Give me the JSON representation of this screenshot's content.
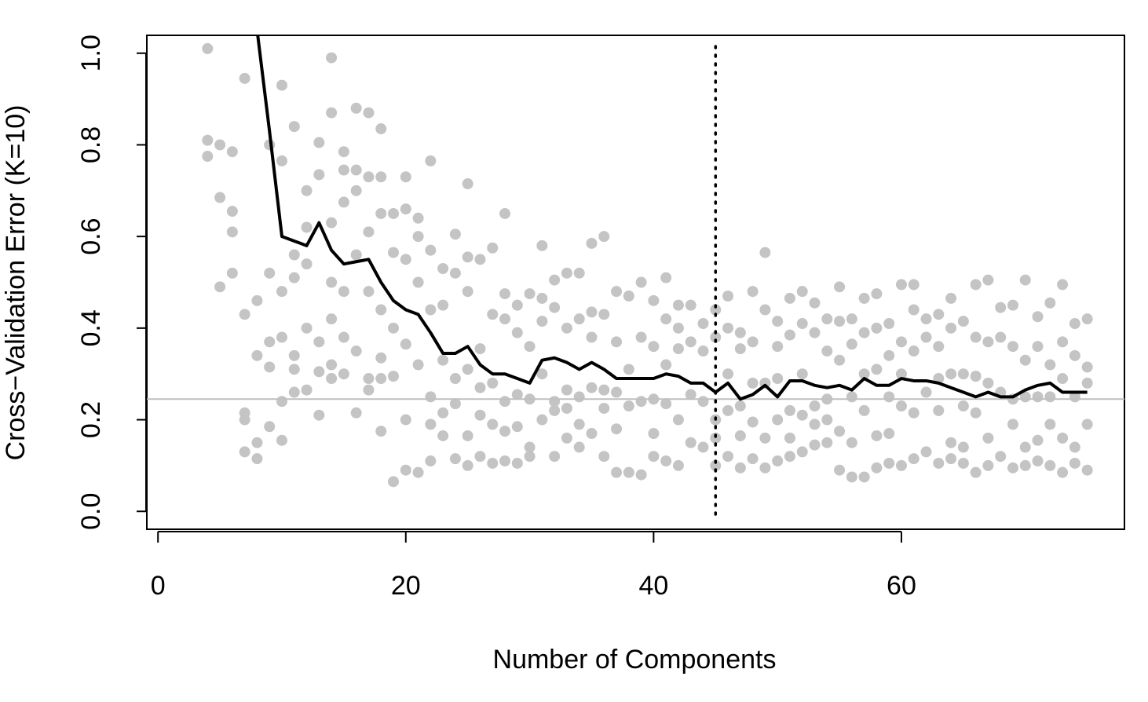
{
  "chart_data": {
    "type": "scatter",
    "xlabel": "Number of Components",
    "ylabel": "Cross−Validation Error (K=10)",
    "xlim": [
      -0.9,
      78.0
    ],
    "ylim": [
      -0.039,
      1.039
    ],
    "xticks": [
      0,
      20,
      40,
      60
    ],
    "yticks": [
      {
        "value": 0,
        "label": "0.0"
      },
      0.2,
      0.4,
      0.6,
      0.8,
      {
        "value": 1,
        "label": "1.0"
      }
    ],
    "hline": 0.245,
    "hline_color": "#c0c0c0",
    "vline": 45,
    "vline_color": "#000000",
    "series": [
      {
        "type": "scatter",
        "color": "#c4c4c4",
        "groups": [
          {
            "x": 4,
            "values": [
              1.01,
              0.81,
              0.775
            ]
          },
          {
            "x": 5,
            "values": [
              0.8,
              0.685,
              0.49
            ]
          },
          {
            "x": 6,
            "values": [
              0.785,
              0.655,
              0.61,
              0.52
            ]
          },
          {
            "x": 7,
            "values": [
              0.945,
              0.43,
              0.215,
              0.2,
              0.13
            ]
          },
          {
            "x": 8,
            "values": [
              0.46,
              0.34,
              0.15,
              0.115
            ]
          },
          {
            "x": 9,
            "values": [
              0.8,
              0.52,
              0.37,
              0.315,
              0.185
            ]
          },
          {
            "x": 10,
            "values": [
              0.93,
              0.765,
              0.48,
              0.38,
              0.24,
              0.155
            ]
          },
          {
            "x": 11,
            "values": [
              0.84,
              0.56,
              0.51,
              0.34,
              0.31,
              0.26
            ]
          },
          {
            "x": 12,
            "values": [
              0.7,
              0.62,
              0.54,
              0.4,
              0.265
            ]
          },
          {
            "x": 13,
            "values": [
              0.805,
              0.735,
              0.37,
              0.305,
              0.21
            ]
          },
          {
            "x": 14,
            "values": [
              0.99,
              0.87,
              0.63,
              0.5,
              0.42,
              0.32,
              0.29
            ]
          },
          {
            "x": 15,
            "values": [
              0.785,
              0.745,
              0.675,
              0.48,
              0.38,
              0.3
            ]
          },
          {
            "x": 16,
            "values": [
              0.88,
              0.745,
              0.7,
              0.56,
              0.35,
              0.215
            ]
          },
          {
            "x": 17,
            "values": [
              0.87,
              0.73,
              0.61,
              0.48,
              0.29,
              0.265
            ]
          },
          {
            "x": 18,
            "values": [
              0.835,
              0.73,
              0.65,
              0.44,
              0.335,
              0.29,
              0.175
            ]
          },
          {
            "x": 19,
            "values": [
              0.65,
              0.565,
              0.4,
              0.295,
              0.065
            ]
          },
          {
            "x": 20,
            "values": [
              0.73,
              0.66,
              0.55,
              0.365,
              0.2,
              0.09
            ]
          },
          {
            "x": 21,
            "values": [
              0.64,
              0.6,
              0.5,
              0.32,
              0.085
            ]
          },
          {
            "x": 22,
            "values": [
              0.765,
              0.57,
              0.44,
              0.25,
              0.19,
              0.11
            ]
          },
          {
            "x": 23,
            "values": [
              0.53,
              0.45,
              0.33,
              0.215,
              0.165
            ]
          },
          {
            "x": 24,
            "values": [
              0.605,
              0.52,
              0.29,
              0.235,
              0.115
            ]
          },
          {
            "x": 25,
            "values": [
              0.715,
              0.555,
              0.48,
              0.31,
              0.165,
              0.1
            ]
          },
          {
            "x": 26,
            "values": [
              0.55,
              0.355,
              0.27,
              0.21,
              0.12
            ]
          },
          {
            "x": 27,
            "values": [
              0.575,
              0.43,
              0.28,
              0.19,
              0.105
            ]
          },
          {
            "x": 28,
            "values": [
              0.65,
              0.475,
              0.42,
              0.24,
              0.175,
              0.11
            ]
          },
          {
            "x": 29,
            "values": [
              0.45,
              0.39,
              0.255,
              0.185,
              0.105
            ]
          },
          {
            "x": 30,
            "values": [
              0.475,
              0.36,
              0.245,
              0.14,
              0.12
            ]
          },
          {
            "x": 31,
            "values": [
              0.58,
              0.465,
              0.415,
              0.3,
              0.2
            ]
          },
          {
            "x": 32,
            "values": [
              0.505,
              0.445,
              0.24,
              0.22,
              0.12
            ]
          },
          {
            "x": 33,
            "values": [
              0.52,
              0.4,
              0.265,
              0.225,
              0.16
            ]
          },
          {
            "x": 34,
            "values": [
              0.52,
              0.42,
              0.25,
              0.19,
              0.14
            ]
          },
          {
            "x": 35,
            "values": [
              0.585,
              0.435,
              0.38,
              0.27,
              0.17
            ]
          },
          {
            "x": 36,
            "values": [
              0.6,
              0.43,
              0.265,
              0.225,
              0.12
            ]
          },
          {
            "x": 37,
            "values": [
              0.48,
              0.37,
              0.26,
              0.18,
              0.085
            ]
          },
          {
            "x": 38,
            "values": [
              0.47,
              0.31,
              0.23,
              0.085
            ]
          },
          {
            "x": 39,
            "values": [
              0.5,
              0.38,
              0.24,
              0.08
            ]
          },
          {
            "x": 40,
            "values": [
              0.46,
              0.36,
              0.245,
              0.17,
              0.12
            ]
          },
          {
            "x": 41,
            "values": [
              0.51,
              0.42,
              0.32,
              0.235,
              0.11
            ]
          },
          {
            "x": 42,
            "values": [
              0.45,
              0.4,
              0.355,
              0.2,
              0.1
            ]
          },
          {
            "x": 43,
            "values": [
              0.45,
              0.37,
              0.255,
              0.15
            ]
          },
          {
            "x": 44,
            "values": [
              0.41,
              0.35,
              0.24,
              0.14
            ]
          },
          {
            "x": 45,
            "values": [
              0.44,
              0.38,
              0.2,
              0.16,
              0.1
            ]
          },
          {
            "x": 46,
            "values": [
              0.47,
              0.4,
              0.3,
              0.22,
              0.12
            ]
          },
          {
            "x": 47,
            "values": [
              0.39,
              0.355,
              0.23,
              0.165,
              0.095
            ]
          },
          {
            "x": 48,
            "values": [
              0.48,
              0.37,
              0.28,
              0.195,
              0.115
            ]
          },
          {
            "x": 49,
            "values": [
              0.565,
              0.44,
              0.28,
              0.16,
              0.095
            ]
          },
          {
            "x": 50,
            "values": [
              0.415,
              0.36,
              0.29,
              0.2,
              0.11
            ]
          },
          {
            "x": 51,
            "values": [
              0.465,
              0.385,
              0.22,
              0.16,
              0.12
            ]
          },
          {
            "x": 52,
            "values": [
              0.48,
              0.41,
              0.3,
              0.21,
              0.13
            ]
          },
          {
            "x": 53,
            "values": [
              0.455,
              0.39,
              0.23,
              0.19,
              0.145
            ]
          },
          {
            "x": 54,
            "values": [
              0.42,
              0.35,
              0.245,
              0.2,
              0.15
            ]
          },
          {
            "x": 55,
            "values": [
              0.49,
              0.415,
              0.33,
              0.175,
              0.09
            ]
          },
          {
            "x": 56,
            "values": [
              0.42,
              0.365,
              0.25,
              0.15,
              0.075
            ]
          },
          {
            "x": 57,
            "values": [
              0.465,
              0.39,
              0.3,
              0.22,
              0.075
            ]
          },
          {
            "x": 58,
            "values": [
              0.475,
              0.4,
              0.31,
              0.165,
              0.095
            ]
          },
          {
            "x": 59,
            "values": [
              0.41,
              0.34,
              0.25,
              0.17,
              0.105
            ]
          },
          {
            "x": 60,
            "values": [
              0.495,
              0.37,
              0.3,
              0.23,
              0.1
            ]
          },
          {
            "x": 61,
            "values": [
              0.495,
              0.44,
              0.35,
              0.215,
              0.115
            ]
          },
          {
            "x": 62,
            "values": [
              0.42,
              0.38,
              0.26,
              0.13
            ]
          },
          {
            "x": 63,
            "values": [
              0.43,
              0.36,
              0.29,
              0.22,
              0.105
            ]
          },
          {
            "x": 64,
            "values": [
              0.465,
              0.4,
              0.3,
              0.15,
              0.115
            ]
          },
          {
            "x": 65,
            "values": [
              0.415,
              0.3,
              0.23,
              0.14,
              0.105
            ]
          },
          {
            "x": 66,
            "values": [
              0.495,
              0.38,
              0.295,
              0.215,
              0.085
            ]
          },
          {
            "x": 67,
            "values": [
              0.505,
              0.37,
              0.28,
              0.16,
              0.1
            ]
          },
          {
            "x": 68,
            "values": [
              0.445,
              0.38,
              0.26,
              0.12
            ]
          },
          {
            "x": 69,
            "values": [
              0.45,
              0.36,
              0.245,
              0.19,
              0.095
            ]
          },
          {
            "x": 70,
            "values": [
              0.505,
              0.33,
              0.25,
              0.14,
              0.1
            ]
          },
          {
            "x": 71,
            "values": [
              0.425,
              0.36,
              0.25,
              0.155,
              0.11
            ]
          },
          {
            "x": 72,
            "values": [
              0.455,
              0.32,
              0.25,
              0.19,
              0.1
            ]
          },
          {
            "x": 73,
            "values": [
              0.495,
              0.37,
              0.29,
              0.16,
              0.085
            ]
          },
          {
            "x": 74,
            "values": [
              0.41,
              0.34,
              0.25,
              0.14,
              0.105
            ]
          },
          {
            "x": 75,
            "values": [
              0.42,
              0.315,
              0.28,
              0.19,
              0.09
            ]
          }
        ]
      },
      {
        "type": "line",
        "color": "#000000",
        "x": [
          8,
          9,
          10,
          11,
          12,
          13,
          14,
          15,
          16,
          17,
          18,
          19,
          20,
          21,
          22,
          23,
          24,
          25,
          26,
          27,
          28,
          29,
          30,
          31,
          32,
          33,
          34,
          35,
          36,
          37,
          38,
          39,
          40,
          41,
          42,
          43,
          44,
          45,
          46,
          47,
          48,
          49,
          50,
          51,
          52,
          53,
          54,
          55,
          56,
          57,
          58,
          59,
          60,
          61,
          62,
          63,
          64,
          65,
          66,
          67,
          68,
          69,
          70,
          71,
          72,
          73,
          74,
          75
        ],
        "values": [
          1.05,
          0.83,
          0.6,
          0.59,
          0.58,
          0.63,
          0.57,
          0.54,
          0.545,
          0.55,
          0.5,
          0.46,
          0.44,
          0.43,
          0.39,
          0.345,
          0.345,
          0.36,
          0.32,
          0.3,
          0.3,
          0.29,
          0.28,
          0.33,
          0.335,
          0.325,
          0.31,
          0.325,
          0.31,
          0.29,
          0.29,
          0.29,
          0.29,
          0.3,
          0.295,
          0.28,
          0.28,
          0.26,
          0.28,
          0.245,
          0.255,
          0.275,
          0.25,
          0.285,
          0.285,
          0.275,
          0.27,
          0.275,
          0.265,
          0.29,
          0.275,
          0.275,
          0.29,
          0.285,
          0.285,
          0.28,
          0.27,
          0.26,
          0.25,
          0.26,
          0.25,
          0.25,
          0.265,
          0.275,
          0.28,
          0.26,
          0.26,
          0.26
        ]
      }
    ]
  }
}
